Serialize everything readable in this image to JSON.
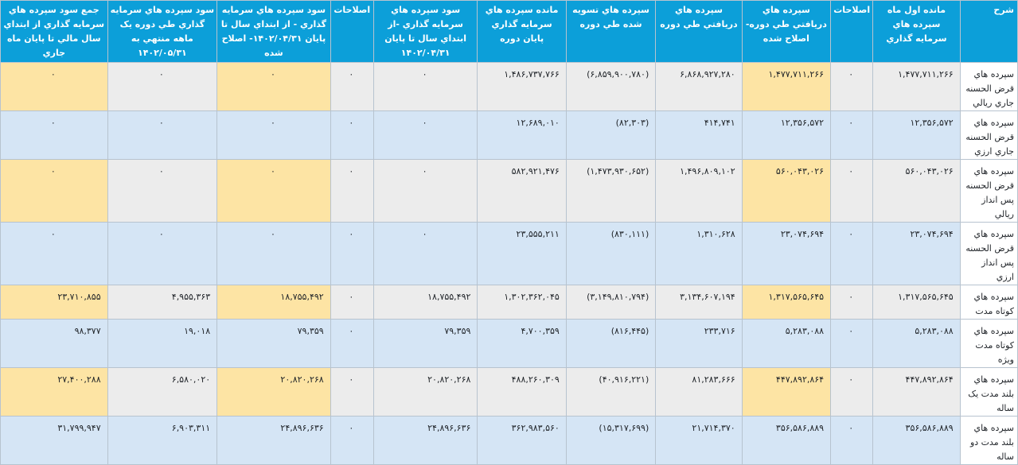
{
  "headers": [
    "شرح",
    "مانده اول ماه سپرده هاي سرمايه گذاري",
    "اصلاحات",
    "سپرده هاي دريافتي طي دوره- اصلاح شده",
    "سپرده هاي دريافتي طي دوره",
    "سپرده هاي تسويه شده طي دوره",
    "مانده سپرده هاي سرمايه گذاري پايان دوره",
    "سود سپرده هاي سرمايه گذاري -از ابتداي سال تا پايان ۱۴۰۲/۰۴/۳۱",
    "اصلاحات",
    "سود سپرده هاي سرمايه گذاري - از ابتداي سال تا پايان ۱۴۰۲/۰۴/۳۱- اصلاح شده",
    "سود سپرده هاي سرمايه گذاري طي دوره يک ماهه منتهي به ۱۴۰۲/۰۵/۳۱",
    "جمع سود سپرده هاي سرمايه گذاري از ابتداي سال مالي تا پايان ماه جاري"
  ],
  "rows": [
    {
      "desc": "سپرده هاي قرض الحسنه جاري ريالي",
      "opening": "۱,۴۷۷,۷۱۱,۲۶۶",
      "adj1": "۰",
      "received_adj": "۱,۴۷۷,۷۱۱,۲۶۶",
      "received": "۶,۸۶۸,۹۲۷,۲۸۰",
      "settled": "(۶,۸۵۹,۹۰۰,۷۸۰)",
      "closing": "۱,۴۸۶,۷۳۷,۷۶۶",
      "profit_ytd": "۰",
      "adj2": "۰",
      "profit_ytd_adj": "۰",
      "profit_month": "۰",
      "profit_total": "۰"
    },
    {
      "desc": "سپرده هاي قرض الحسنه جاري ارزي",
      "opening": "۱۲,۳۵۶,۵۷۲",
      "adj1": "۰",
      "received_adj": "۱۲,۳۵۶,۵۷۲",
      "received": "۴۱۴,۷۴۱",
      "settled": "(۸۲,۳۰۳)",
      "closing": "۱۲,۶۸۹,۰۱۰",
      "profit_ytd": "۰",
      "adj2": "۰",
      "profit_ytd_adj": "۰",
      "profit_month": "۰",
      "profit_total": "۰"
    },
    {
      "desc": "سپرده هاي قرض الحسنه پس انداز ريالي",
      "opening": "۵۶۰,۰۴۳,۰۲۶",
      "adj1": "۰",
      "received_adj": "۵۶۰,۰۴۳,۰۲۶",
      "received": "۱,۴۹۶,۸۰۹,۱۰۲",
      "settled": "(۱,۴۷۳,۹۳۰,۶۵۲)",
      "closing": "۵۸۲,۹۲۱,۴۷۶",
      "profit_ytd": "۰",
      "adj2": "۰",
      "profit_ytd_adj": "۰",
      "profit_month": "۰",
      "profit_total": "۰"
    },
    {
      "desc": "سپرده هاي قرض الحسنه پس انداز ارزي",
      "opening": "۲۳,۰۷۴,۶۹۴",
      "adj1": "۰",
      "received_adj": "۲۳,۰۷۴,۶۹۴",
      "received": "۱,۳۱۰,۶۲۸",
      "settled": "(۸۳۰,۱۱۱)",
      "closing": "۲۳,۵۵۵,۲۱۱",
      "profit_ytd": "۰",
      "adj2": "۰",
      "profit_ytd_adj": "۰",
      "profit_month": "۰",
      "profit_total": "۰"
    },
    {
      "desc": "سپرده هاي کوتاه مدت",
      "opening": "۱,۳۱۷,۵۶۵,۶۴۵",
      "adj1": "۰",
      "received_adj": "۱,۳۱۷,۵۶۵,۶۴۵",
      "received": "۳,۱۳۴,۶۰۷,۱۹۴",
      "settled": "(۳,۱۴۹,۸۱۰,۷۹۴)",
      "closing": "۱,۳۰۲,۳۶۲,۰۴۵",
      "profit_ytd": "۱۸,۷۵۵,۴۹۲",
      "adj2": "۰",
      "profit_ytd_adj": "۱۸,۷۵۵,۴۹۲",
      "profit_month": "۴,۹۵۵,۳۶۳",
      "profit_total": "۲۳,۷۱۰,۸۵۵"
    },
    {
      "desc": "سپرده هاي کوتاه مدت ويژه",
      "opening": "۵,۲۸۳,۰۸۸",
      "adj1": "۰",
      "received_adj": "۵,۲۸۳,۰۸۸",
      "received": "۲۳۳,۷۱۶",
      "settled": "(۸۱۶,۴۴۵)",
      "closing": "۴,۷۰۰,۳۵۹",
      "profit_ytd": "۷۹,۳۵۹",
      "adj2": "۰",
      "profit_ytd_adj": "۷۹,۳۵۹",
      "profit_month": "۱۹,۰۱۸",
      "profit_total": "۹۸,۳۷۷"
    },
    {
      "desc": "سپرده هاي بلند مدت يک ساله",
      "opening": "۴۴۷,۸۹۲,۸۶۴",
      "adj1": "۰",
      "received_adj": "۴۴۷,۸۹۲,۸۶۴",
      "received": "۸۱,۲۸۳,۶۶۶",
      "settled": "(۴۰,۹۱۶,۲۲۱)",
      "closing": "۴۸۸,۲۶۰,۳۰۹",
      "profit_ytd": "۲۰,۸۲۰,۲۶۸",
      "adj2": "۰",
      "profit_ytd_adj": "۲۰,۸۲۰,۲۶۸",
      "profit_month": "۶,۵۸۰,۰۲۰",
      "profit_total": "۲۷,۴۰۰,۲۸۸"
    },
    {
      "desc": "سپرده هاي بلند مدت دو ساله",
      "opening": "۳۵۶,۵۸۶,۸۸۹",
      "adj1": "۰",
      "received_adj": "۳۵۶,۵۸۶,۸۸۹",
      "received": "۲۱,۷۱۴,۳۷۰",
      "settled": "(۱۵,۳۱۷,۶۹۹)",
      "closing": "۳۶۲,۹۸۳,۵۶۰",
      "profit_ytd": "۲۴,۸۹۶,۶۳۶",
      "adj2": "۰",
      "profit_ytd_adj": "۲۴,۸۹۶,۶۳۶",
      "profit_month": "۶,۹۰۳,۳۱۱",
      "profit_total": "۳۱,۷۹۹,۹۴۷"
    }
  ]
}
